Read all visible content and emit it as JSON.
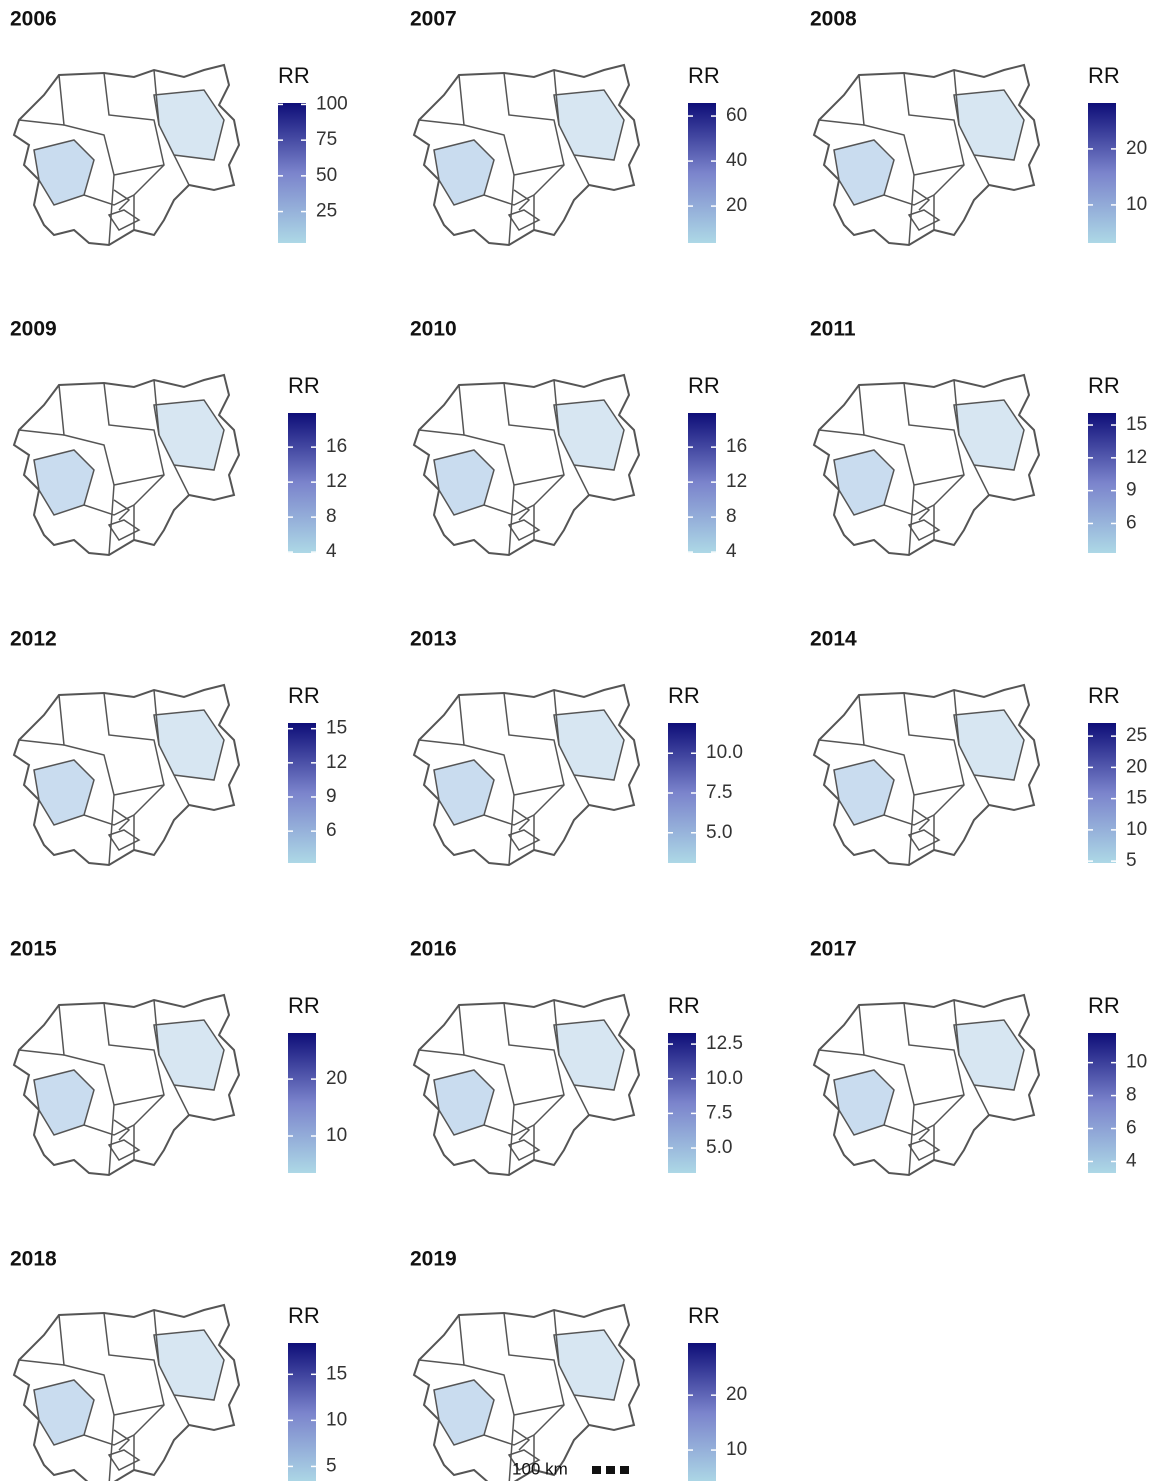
{
  "panels": [
    {
      "title": "2006",
      "legend_title": "RR",
      "lim": [
        3,
        101
      ],
      "ticks": [
        25,
        50,
        75,
        100
      ]
    },
    {
      "title": "2007",
      "legend_title": "RR",
      "lim": [
        3.6,
        65.8
      ],
      "ticks": [
        20,
        40,
        60
      ]
    },
    {
      "title": "2008",
      "legend_title": "RR",
      "lim": [
        3.2,
        28.2
      ],
      "ticks": [
        10,
        20
      ]
    },
    {
      "title": "2009",
      "legend_title": "RR",
      "lim": [
        3.9,
        19.9
      ],
      "ticks": [
        4,
        8,
        12,
        16
      ]
    },
    {
      "title": "2010",
      "legend_title": "RR",
      "lim": [
        3.9,
        19.9
      ],
      "ticks": [
        4,
        8,
        12,
        16
      ]
    },
    {
      "title": "2011",
      "legend_title": "RR",
      "lim": [
        3.3,
        16.1
      ],
      "ticks": [
        6,
        9,
        12,
        15
      ]
    },
    {
      "title": "2012",
      "legend_title": "RR",
      "lim": [
        3.2,
        15.5
      ],
      "ticks": [
        6,
        9,
        12,
        15
      ]
    },
    {
      "title": "2013",
      "legend_title": "RR",
      "lim": [
        3.1,
        11.9
      ],
      "ticks": [
        {
          "value": 5,
          "label": "5.0"
        },
        7.5,
        {
          "value": 10,
          "label": "10.0"
        }
      ]
    },
    {
      "title": "2014",
      "legend_title": "RR",
      "lim": [
        4.7,
        27.1
      ],
      "ticks": [
        5,
        10,
        15,
        20,
        25
      ]
    },
    {
      "title": "2015",
      "legend_title": "RR",
      "lim": [
        3.5,
        28.1
      ],
      "ticks": [
        10,
        20
      ]
    },
    {
      "title": "2016",
      "legend_title": "RR",
      "lim": [
        3.2,
        13.3
      ],
      "ticks": [
        {
          "value": 5,
          "label": "5.0"
        },
        7.5,
        {
          "value": 10,
          "label": "10.0"
        },
        12.5
      ]
    },
    {
      "title": "2017",
      "legend_title": "RR",
      "lim": [
        3.3,
        11.8
      ],
      "ticks": [
        4,
        6,
        8,
        10
      ]
    },
    {
      "title": "2018",
      "legend_title": "RR",
      "lim": [
        3.2,
        18.4
      ],
      "ticks": [
        5,
        10,
        15
      ]
    },
    {
      "title": "2019",
      "legend_title": "RR",
      "lim": [
        4,
        29.5
      ],
      "ticks": [
        10,
        20
      ]
    }
  ],
  "low_color": "#add8e6",
  "high_color": "#0e0e78",
  "scale_label": "100 km"
}
